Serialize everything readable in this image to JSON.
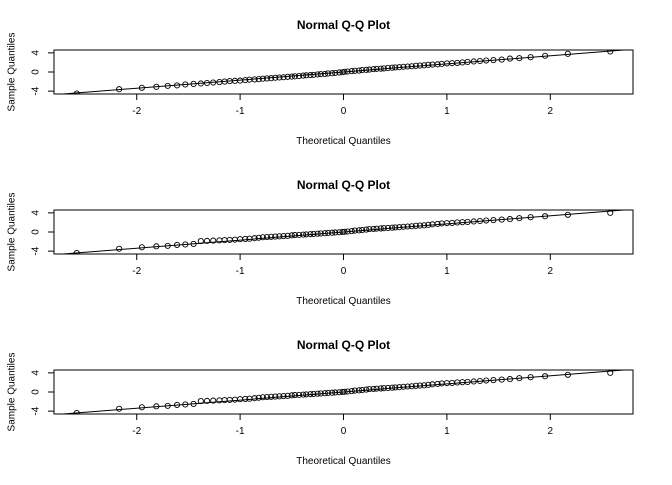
{
  "chart_data": [
    {
      "type": "scatter",
      "title": "Normal Q-Q Plot",
      "xlabel": "Theoretical Quantiles",
      "ylabel": "Sample Quantiles",
      "xlim": [
        -2.8,
        2.8
      ],
      "ylim": [
        -4.6,
        4.6
      ],
      "xticks": [
        -2,
        -1,
        0,
        1,
        2
      ],
      "yticks": [
        -4,
        0,
        4
      ],
      "grid": false,
      "reference_line": [
        [
          -2.8,
          -4.75
        ],
        [
          2.8,
          4.75
        ]
      ],
      "x": [
        -2.58,
        -2.17,
        -1.95,
        -1.81,
        -1.7,
        -1.61,
        -1.53,
        -1.45,
        -1.38,
        -1.32,
        -1.26,
        -1.2,
        -1.15,
        -1.1,
        -1.05,
        -1.0,
        -0.95,
        -0.91,
        -0.86,
        -0.82,
        -0.78,
        -0.74,
        -0.7,
        -0.66,
        -0.62,
        -0.58,
        -0.54,
        -0.5,
        -0.47,
        -0.43,
        -0.39,
        -0.36,
        -0.32,
        -0.29,
        -0.25,
        -0.22,
        -0.18,
        -0.15,
        -0.11,
        -0.08,
        -0.04,
        -0.01,
        0.01,
        0.04,
        0.08,
        0.11,
        0.15,
        0.18,
        0.22,
        0.25,
        0.29,
        0.32,
        0.36,
        0.39,
        0.43,
        0.47,
        0.5,
        0.54,
        0.58,
        0.62,
        0.66,
        0.7,
        0.74,
        0.78,
        0.82,
        0.86,
        0.91,
        0.95,
        1.0,
        1.05,
        1.1,
        1.15,
        1.2,
        1.26,
        1.32,
        1.38,
        1.45,
        1.53,
        1.61,
        1.7,
        1.81,
        1.95,
        2.17,
        2.58
      ],
      "y": [
        -4.5,
        -3.6,
        -3.3,
        -3.1,
        -2.9,
        -2.8,
        -2.6,
        -2.5,
        -2.4,
        -2.3,
        -2.2,
        -2.1,
        -2.0,
        -1.9,
        -1.85,
        -1.8,
        -1.7,
        -1.6,
        -1.55,
        -1.5,
        -1.4,
        -1.35,
        -1.3,
        -1.2,
        -1.15,
        -1.1,
        -1.0,
        -0.95,
        -0.9,
        -0.85,
        -0.75,
        -0.7,
        -0.65,
        -0.6,
        -0.5,
        -0.45,
        -0.4,
        -0.3,
        -0.25,
        -0.2,
        -0.1,
        -0.05,
        0.05,
        0.1,
        0.2,
        0.25,
        0.3,
        0.4,
        0.45,
        0.5,
        0.6,
        0.65,
        0.7,
        0.75,
        0.85,
        0.9,
        0.95,
        1.0,
        1.1,
        1.15,
        1.2,
        1.3,
        1.35,
        1.4,
        1.5,
        1.55,
        1.6,
        1.7,
        1.8,
        1.85,
        1.9,
        2.0,
        2.1,
        2.2,
        2.3,
        2.4,
        2.5,
        2.6,
        2.8,
        2.9,
        3.1,
        3.4,
        3.8,
        4.3
      ]
    },
    {
      "type": "scatter",
      "title": "Normal Q-Q Plot",
      "xlabel": "Theoretical Quantiles",
      "ylabel": "Sample Quantiles",
      "xlim": [
        -2.8,
        2.8
      ],
      "ylim": [
        -4.6,
        4.6
      ],
      "xticks": [
        -2,
        -1,
        0,
        1,
        2
      ],
      "yticks": [
        -4,
        0,
        4
      ],
      "grid": false,
      "reference_line": [
        [
          -2.8,
          -4.75
        ],
        [
          2.8,
          4.75
        ]
      ],
      "x": [
        -2.58,
        -2.17,
        -1.95,
        -1.81,
        -1.7,
        -1.61,
        -1.53,
        -1.45,
        -1.38,
        -1.32,
        -1.26,
        -1.2,
        -1.15,
        -1.1,
        -1.05,
        -1.0,
        -0.95,
        -0.91,
        -0.86,
        -0.82,
        -0.78,
        -0.74,
        -0.7,
        -0.66,
        -0.62,
        -0.58,
        -0.54,
        -0.5,
        -0.47,
        -0.43,
        -0.39,
        -0.36,
        -0.32,
        -0.29,
        -0.25,
        -0.22,
        -0.18,
        -0.15,
        -0.11,
        -0.08,
        -0.04,
        -0.01,
        0.01,
        0.04,
        0.08,
        0.11,
        0.15,
        0.18,
        0.22,
        0.25,
        0.29,
        0.32,
        0.36,
        0.39,
        0.43,
        0.47,
        0.5,
        0.54,
        0.58,
        0.62,
        0.66,
        0.7,
        0.74,
        0.78,
        0.82,
        0.86,
        0.91,
        0.95,
        1.0,
        1.05,
        1.1,
        1.15,
        1.2,
        1.26,
        1.32,
        1.38,
        1.45,
        1.53,
        1.61,
        1.7,
        1.81,
        1.95,
        2.17,
        2.58
      ],
      "y": [
        -4.4,
        -3.5,
        -3.2,
        -3.0,
        -2.9,
        -2.7,
        -2.6,
        -2.5,
        -1.9,
        -1.85,
        -1.8,
        -1.75,
        -1.7,
        -1.65,
        -1.6,
        -1.5,
        -1.45,
        -1.4,
        -1.3,
        -1.2,
        -1.1,
        -1.05,
        -1.0,
        -0.95,
        -0.9,
        -0.85,
        -0.8,
        -0.7,
        -0.65,
        -0.6,
        -0.55,
        -0.5,
        -0.45,
        -0.4,
        -0.35,
        -0.3,
        -0.25,
        -0.2,
        -0.15,
        -0.1,
        -0.05,
        0.0,
        0.05,
        0.1,
        0.2,
        0.3,
        0.35,
        0.4,
        0.5,
        0.6,
        0.65,
        0.7,
        0.75,
        0.8,
        0.85,
        0.9,
        0.95,
        1.0,
        1.1,
        1.15,
        1.2,
        1.3,
        1.35,
        1.4,
        1.5,
        1.6,
        1.7,
        1.8,
        1.85,
        1.9,
        2.0,
        2.05,
        2.1,
        2.2,
        2.3,
        2.4,
        2.5,
        2.6,
        2.7,
        2.9,
        3.1,
        3.3,
        3.6,
        4.0
      ]
    },
    {
      "type": "scatter",
      "title": "Normal Q-Q Plot",
      "xlabel": "Theoretical Quantiles",
      "ylabel": "Sample Quantiles",
      "xlim": [
        -2.8,
        2.8
      ],
      "ylim": [
        -4.6,
        4.6
      ],
      "xticks": [
        -2,
        -1,
        0,
        1,
        2
      ],
      "yticks": [
        -4,
        0,
        4
      ],
      "grid": false,
      "reference_line": [
        [
          -2.8,
          -4.75
        ],
        [
          2.8,
          4.75
        ]
      ],
      "x": [
        -2.58,
        -2.17,
        -1.95,
        -1.81,
        -1.7,
        -1.61,
        -1.53,
        -1.45,
        -1.38,
        -1.32,
        -1.26,
        -1.2,
        -1.15,
        -1.1,
        -1.05,
        -1.0,
        -0.95,
        -0.91,
        -0.86,
        -0.82,
        -0.78,
        -0.74,
        -0.7,
        -0.66,
        -0.62,
        -0.58,
        -0.54,
        -0.5,
        -0.47,
        -0.43,
        -0.39,
        -0.36,
        -0.32,
        -0.29,
        -0.25,
        -0.22,
        -0.18,
        -0.15,
        -0.11,
        -0.08,
        -0.04,
        -0.01,
        0.01,
        0.04,
        0.08,
        0.11,
        0.15,
        0.18,
        0.22,
        0.25,
        0.29,
        0.32,
        0.36,
        0.39,
        0.43,
        0.47,
        0.5,
        0.54,
        0.58,
        0.62,
        0.66,
        0.7,
        0.74,
        0.78,
        0.82,
        0.86,
        0.91,
        0.95,
        1.0,
        1.05,
        1.1,
        1.15,
        1.2,
        1.26,
        1.32,
        1.38,
        1.45,
        1.53,
        1.61,
        1.7,
        1.81,
        1.95,
        2.17,
        2.58
      ],
      "y": [
        -4.4,
        -3.5,
        -3.2,
        -3.0,
        -2.9,
        -2.7,
        -2.6,
        -2.5,
        -1.9,
        -1.85,
        -1.8,
        -1.75,
        -1.7,
        -1.65,
        -1.6,
        -1.5,
        -1.45,
        -1.4,
        -1.3,
        -1.2,
        -1.1,
        -1.05,
        -1.0,
        -0.95,
        -0.9,
        -0.85,
        -0.8,
        -0.7,
        -0.65,
        -0.6,
        -0.55,
        -0.5,
        -0.45,
        -0.4,
        -0.35,
        -0.3,
        -0.25,
        -0.2,
        -0.15,
        -0.1,
        -0.05,
        0.0,
        0.05,
        0.1,
        0.2,
        0.3,
        0.35,
        0.4,
        0.5,
        0.6,
        0.65,
        0.7,
        0.75,
        0.8,
        0.85,
        0.9,
        0.95,
        1.0,
        1.1,
        1.15,
        1.2,
        1.3,
        1.35,
        1.4,
        1.5,
        1.6,
        1.7,
        1.8,
        1.85,
        1.9,
        2.0,
        2.05,
        2.1,
        2.2,
        2.3,
        2.4,
        2.5,
        2.6,
        2.7,
        2.9,
        3.1,
        3.3,
        3.6,
        4.0
      ]
    }
  ]
}
